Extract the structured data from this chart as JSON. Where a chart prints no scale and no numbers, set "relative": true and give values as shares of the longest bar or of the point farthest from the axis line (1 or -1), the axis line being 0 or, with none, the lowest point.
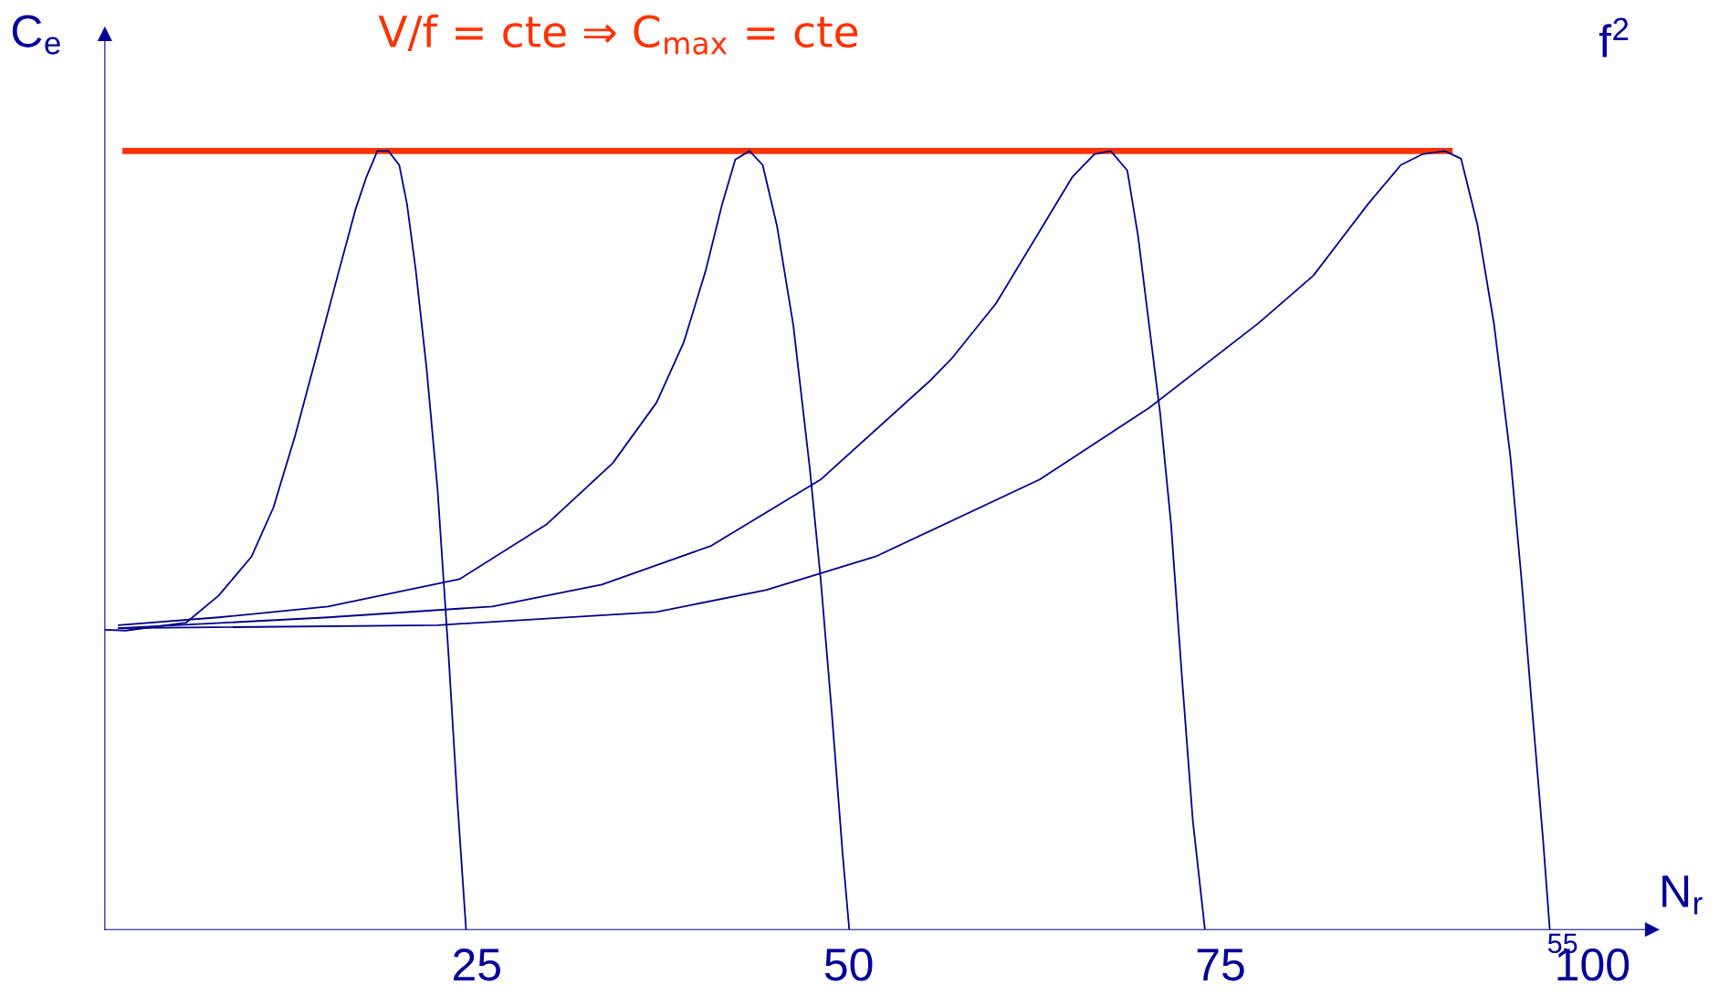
{
  "chart_data": {
    "type": "line",
    "title": "V/f = cte ⇒ C$_{max}$ = cte",
    "xlabel": "N$_{r}$",
    "ylabel": "C$_{e}$",
    "relative": true,
    "xlim": [
      0,
      104
    ],
    "xticks": [
      25,
      50,
      75,
      100
    ],
    "grid": false,
    "legend": false,
    "marker": "none",
    "line_style": "solid",
    "annotations": [
      "f$^{2}$",
      "55"
    ],
    "series": [
      {
        "color": "#00008b",
        "x": [
          0,
          1.4,
          5.45,
          7.65,
          9.86,
          11.33,
          12.8,
          14.28,
          15.75,
          16.85,
          17.59,
          18.32,
          19.06,
          19.79,
          20.31,
          20.9,
          21.63,
          22.37,
          23.11,
          23.69,
          24.28
        ],
        "values": [
          0.385,
          0.384,
          0.394,
          0.429,
          0.479,
          0.542,
          0.635,
          0.741,
          0.847,
          0.925,
          0.967,
          1.0,
          1.0,
          0.982,
          0.932,
          0.847,
          0.72,
          0.564,
          0.351,
          0.167,
          0
        ]
      },
      {
        "color": "#00008b",
        "x": [
          0.88,
          7.65,
          15.01,
          23.84,
          29.73,
          34.14,
          37.09,
          38.93,
          40.4,
          41.5,
          42.38,
          43.34,
          44.22,
          45.18,
          46.28,
          47.39,
          48.12,
          48.86,
          49.6,
          50.04
        ],
        "values": [
          0.391,
          0.401,
          0.415,
          0.45,
          0.521,
          0.599,
          0.677,
          0.755,
          0.847,
          0.932,
          0.989,
          1.0,
          0.982,
          0.904,
          0.776,
          0.592,
          0.45,
          0.28,
          0.096,
          0
        ]
      },
      {
        "color": "#00008b",
        "x": [
          0.88,
          15.01,
          26.05,
          33.41,
          40.77,
          48.12,
          55.48,
          56.95,
          59.9,
          62.84,
          65.05,
          66.52,
          67.62,
          68.73,
          69.46,
          70.2,
          70.94,
          71.67,
          72.41,
          73.14,
          73.95
        ],
        "values": [
          0.387,
          0.401,
          0.415,
          0.443,
          0.493,
          0.578,
          0.705,
          0.734,
          0.804,
          0.897,
          0.967,
          0.996,
          1.0,
          0.975,
          0.89,
          0.776,
          0.663,
          0.521,
          0.323,
          0.139,
          0
        ]
      },
      {
        "color": "#00008b",
        "x": [
          0.88,
          22.37,
          37.09,
          44.44,
          51.8,
          62.84,
          70.2,
          77.56,
          81.24,
          84.92,
          87.12,
          88.59,
          90.07,
          91.17,
          92.27,
          93.38,
          94.48,
          95.22,
          95.95,
          96.69,
          97.13
        ],
        "values": [
          0.387,
          0.391,
          0.408,
          0.436,
          0.479,
          0.578,
          0.67,
          0.779,
          0.84,
          0.932,
          0.982,
          0.996,
          1.0,
          0.99,
          0.905,
          0.778,
          0.608,
          0.452,
          0.282,
          0.113,
          0
        ]
      },
      {
        "color": "#ff3300",
        "x": [
          1.18,
          90.6
        ],
        "values": [
          1,
          1
        ]
      }
    ]
  }
}
